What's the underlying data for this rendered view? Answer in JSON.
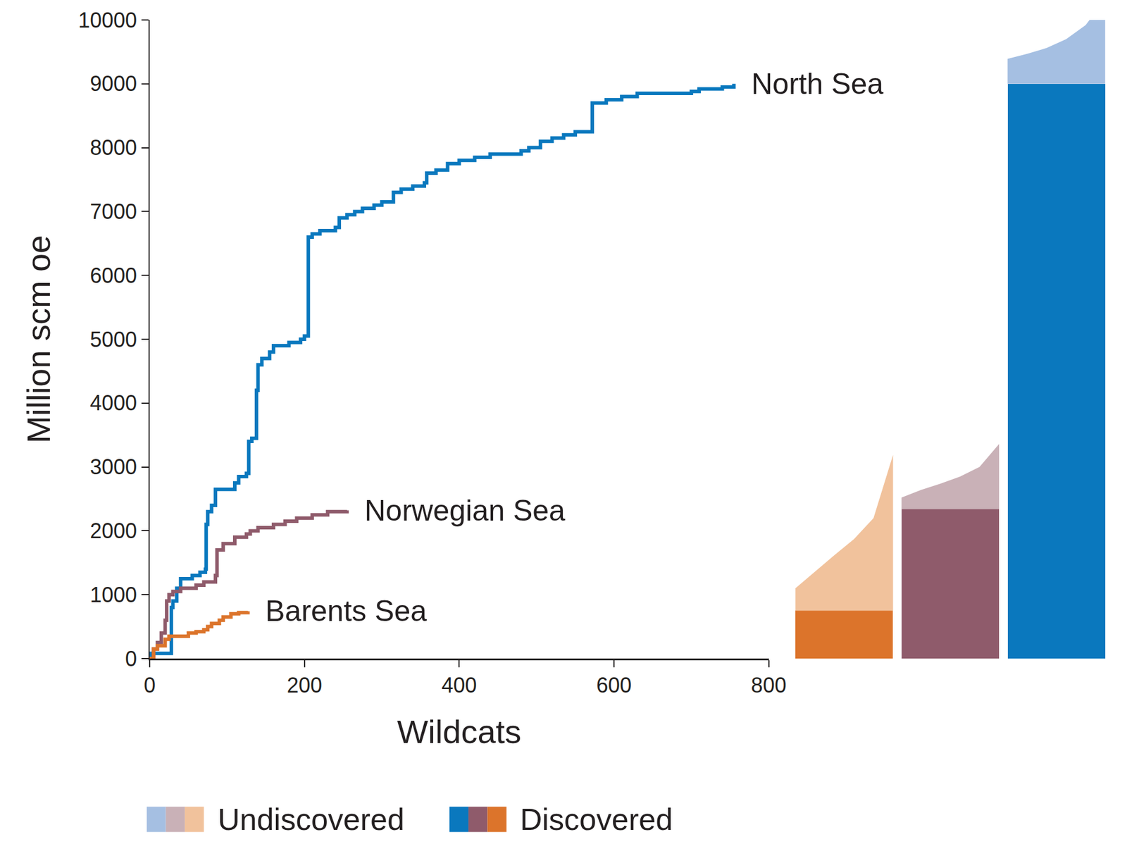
{
  "chart_data": {
    "type": "line",
    "line_style": "step",
    "x_label": "Wildcats",
    "y_label": "Million scm oe",
    "xlim": [
      0,
      800
    ],
    "xticks": [
      0,
      200,
      400,
      600,
      800
    ],
    "ylim": [
      0,
      10000
    ],
    "yticks": [
      0,
      1000,
      2000,
      3000,
      4000,
      5000,
      6000,
      7000,
      8000,
      9000,
      10000
    ],
    "grid": false,
    "legend_labels": [
      "Undiscovered",
      "Discovered"
    ],
    "series": [
      {
        "name": "North Sea",
        "color": "#0a78be",
        "undiscovered_color": "#a5bfe2",
        "x": [
          0,
          2,
          28,
          30,
          35,
          40,
          55,
          65,
          72,
          73,
          75,
          80,
          85,
          100,
          110,
          115,
          125,
          128,
          132,
          138,
          140,
          145,
          155,
          160,
          180,
          195,
          200,
          205,
          210,
          220,
          240,
          245,
          255,
          265,
          275,
          290,
          300,
          315,
          325,
          340,
          355,
          358,
          370,
          385,
          400,
          420,
          440,
          470,
          480,
          490,
          505,
          520,
          535,
          550,
          572,
          590,
          610,
          630,
          700,
          710,
          740,
          755
        ],
        "values": [
          0,
          80,
          800,
          900,
          1100,
          1250,
          1300,
          1350,
          1400,
          2100,
          2300,
          2400,
          2650,
          2650,
          2750,
          2850,
          2900,
          3400,
          3450,
          4200,
          4600,
          4700,
          4800,
          4900,
          4950,
          5000,
          5050,
          6600,
          6650,
          6700,
          6750,
          6900,
          6950,
          7000,
          7050,
          7100,
          7150,
          7300,
          7350,
          7400,
          7450,
          7600,
          7650,
          7750,
          7800,
          7850,
          7900,
          7900,
          7950,
          8000,
          8100,
          8150,
          8200,
          8250,
          8700,
          8750,
          8800,
          8850,
          8880,
          8920,
          8950,
          9000
        ],
        "discovered": 9000,
        "undiscovered": [
          390,
          470,
          560,
          700,
          920,
          1320
        ]
      },
      {
        "name": "Norwegian Sea",
        "color": "#8f5b6b",
        "undiscovered_color": "#c9b1b7",
        "x": [
          0,
          5,
          10,
          15,
          20,
          22,
          25,
          30,
          40,
          60,
          70,
          85,
          87,
          95,
          110,
          125,
          130,
          140,
          160,
          175,
          190,
          210,
          230,
          255
        ],
        "values": [
          0,
          150,
          250,
          400,
          600,
          900,
          1000,
          1050,
          1100,
          1150,
          1200,
          1300,
          1700,
          1800,
          1900,
          1950,
          2000,
          2050,
          2100,
          2150,
          2200,
          2250,
          2300,
          2320
        ],
        "discovered": 2340,
        "undiscovered": [
          180,
          300,
          400,
          510,
          660,
          1020
        ]
      },
      {
        "name": "Barents Sea",
        "color": "#dc742b",
        "undiscovered_color": "#f1c29c",
        "x": [
          0,
          5,
          10,
          20,
          25,
          50,
          60,
          70,
          75,
          80,
          90,
          95,
          105,
          115,
          127
        ],
        "values": [
          0,
          150,
          200,
          300,
          350,
          400,
          420,
          450,
          500,
          550,
          600,
          650,
          700,
          720,
          740
        ],
        "discovered": 750,
        "undiscovered": [
          350,
          610,
          870,
          1120,
          1450,
          2440
        ]
      }
    ]
  }
}
